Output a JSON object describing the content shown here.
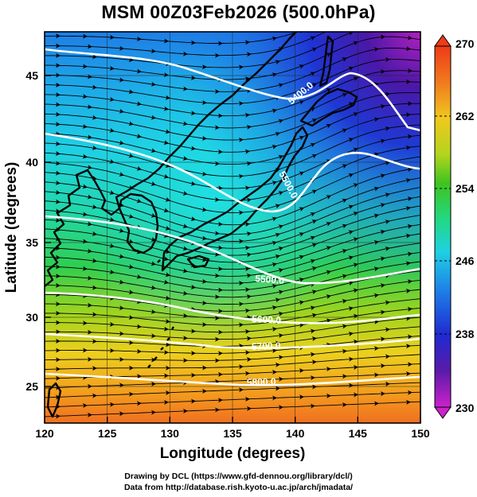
{
  "title": "MSM 00Z03Feb2026 (500.0hPa)",
  "x_axis": {
    "label": "Longitude (degrees)",
    "ticks": [
      "120",
      "125",
      "130",
      "135",
      "140",
      "145",
      "150"
    ],
    "range": [
      120,
      150
    ]
  },
  "y_axis": {
    "label": "Latitude  (degrees)",
    "ticks": [
      "25",
      "30",
      "35",
      "40",
      "45"
    ],
    "range": [
      22.5,
      47.5
    ]
  },
  "colorbar": {
    "ticks": [
      "270",
      "262",
      "254",
      "246",
      "238",
      "230"
    ],
    "range": [
      230,
      270
    ],
    "colors": [
      "#cc22cc",
      "#5a1aa8",
      "#1f2ad1",
      "#1e7ee6",
      "#1fd0e4",
      "#22d882",
      "#3ec41e",
      "#b4d41e",
      "#f0c81e",
      "#f07a1e",
      "#ee3b18"
    ]
  },
  "contours": [
    {
      "label": "5400.0",
      "value": 5400
    },
    {
      "label": "5500.0",
      "value": 5500
    },
    {
      "label": "5500.0",
      "value": 5500
    },
    {
      "label": "5600.0",
      "value": 5600
    },
    {
      "label": "5700.0",
      "value": 5700
    },
    {
      "label": "5800.0",
      "value": 5800
    }
  ],
  "credits": {
    "line1": "Drawing by DCL (https://www.gfd-dennou.org/library/dcl/)",
    "line2": "Data from http://database.rish.kyoto-u.ac.jp/arch/jmadata/"
  }
}
